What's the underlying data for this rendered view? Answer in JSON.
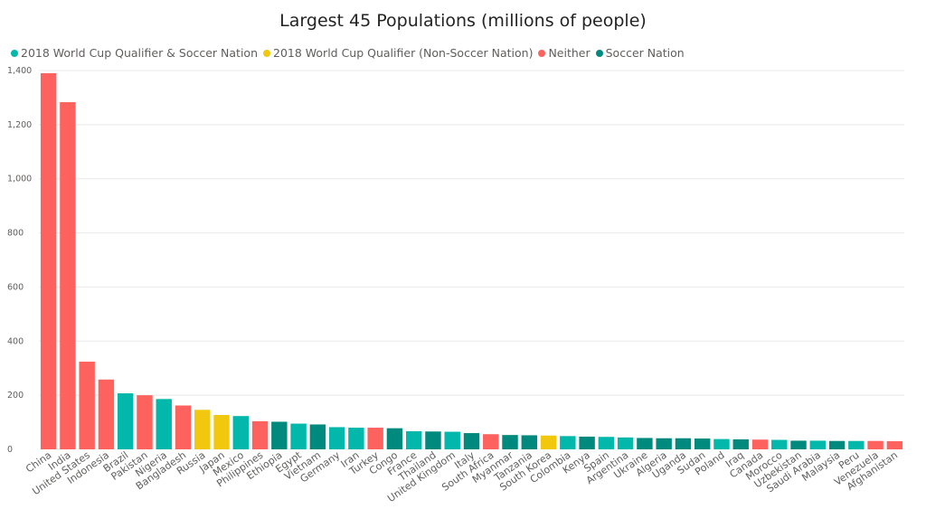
{
  "chart_data": {
    "type": "bar",
    "title": "Largest 45 Populations (millions of people)",
    "xlabel": "",
    "ylabel": "",
    "ylim": [
      0,
      1400
    ],
    "yticks": [
      0,
      200,
      400,
      600,
      800,
      1000,
      1200,
      1400
    ],
    "ytick_labels": [
      "0",
      "200",
      "400",
      "600",
      "800",
      "1,000",
      "1,200",
      "1,400"
    ],
    "grid": true,
    "legend_position": "top-left",
    "legend": [
      {
        "label": "2018 World Cup Qualifier & Soccer Nation",
        "color": "#01b8aa"
      },
      {
        "label": "2018 World Cup Qualifier (Non-Soccer Nation)",
        "color": "#f2c80f"
      },
      {
        "label": "Neither",
        "color": "#fd625e"
      },
      {
        "label": "Soccer Nation",
        "color": "#008a7e"
      }
    ],
    "bars": [
      {
        "category": "China",
        "value": 1390,
        "group": "Neither"
      },
      {
        "category": "India",
        "value": 1283,
        "group": "Neither"
      },
      {
        "category": "United States",
        "value": 324,
        "group": "Neither"
      },
      {
        "category": "Indonesia",
        "value": 258,
        "group": "Neither"
      },
      {
        "category": "Brazil",
        "value": 207,
        "group": "2018 World Cup Qualifier & Soccer Nation"
      },
      {
        "category": "Pakistan",
        "value": 200,
        "group": "Neither"
      },
      {
        "category": "Nigeria",
        "value": 186,
        "group": "2018 World Cup Qualifier & Soccer Nation"
      },
      {
        "category": "Bangladesh",
        "value": 162,
        "group": "Neither"
      },
      {
        "category": "Russia",
        "value": 146,
        "group": "2018 World Cup Qualifier (Non-Soccer Nation)"
      },
      {
        "category": "Japan",
        "value": 127,
        "group": "2018 World Cup Qualifier (Non-Soccer Nation)"
      },
      {
        "category": "Mexico",
        "value": 123,
        "group": "2018 World Cup Qualifier & Soccer Nation"
      },
      {
        "category": "Philippines",
        "value": 104,
        "group": "Neither"
      },
      {
        "category": "Ethiopia",
        "value": 102,
        "group": "Soccer Nation"
      },
      {
        "category": "Egypt",
        "value": 95,
        "group": "2018 World Cup Qualifier & Soccer Nation"
      },
      {
        "category": "Vietnam",
        "value": 92,
        "group": "Soccer Nation"
      },
      {
        "category": "Germany",
        "value": 82,
        "group": "2018 World Cup Qualifier & Soccer Nation"
      },
      {
        "category": "Iran",
        "value": 80,
        "group": "2018 World Cup Qualifier & Soccer Nation"
      },
      {
        "category": "Turkey",
        "value": 80,
        "group": "Neither"
      },
      {
        "category": "Congo",
        "value": 78,
        "group": "Soccer Nation"
      },
      {
        "category": "France",
        "value": 67,
        "group": "2018 World Cup Qualifier & Soccer Nation"
      },
      {
        "category": "Thailand",
        "value": 66,
        "group": "Soccer Nation"
      },
      {
        "category": "United Kingdom",
        "value": 65,
        "group": "2018 World Cup Qualifier & Soccer Nation"
      },
      {
        "category": "Italy",
        "value": 60,
        "group": "Soccer Nation"
      },
      {
        "category": "South Africa",
        "value": 56,
        "group": "Neither"
      },
      {
        "category": "Myanmar",
        "value": 53,
        "group": "Soccer Nation"
      },
      {
        "category": "Tanzania",
        "value": 52,
        "group": "Soccer Nation"
      },
      {
        "category": "South Korea",
        "value": 51,
        "group": "2018 World Cup Qualifier (Non-Soccer Nation)"
      },
      {
        "category": "Colombia",
        "value": 49,
        "group": "2018 World Cup Qualifier & Soccer Nation"
      },
      {
        "category": "Kenya",
        "value": 47,
        "group": "Soccer Nation"
      },
      {
        "category": "Spain",
        "value": 46,
        "group": "2018 World Cup Qualifier & Soccer Nation"
      },
      {
        "category": "Argentina",
        "value": 44,
        "group": "2018 World Cup Qualifier & Soccer Nation"
      },
      {
        "category": "Ukraine",
        "value": 42,
        "group": "Soccer Nation"
      },
      {
        "category": "Algeria",
        "value": 41,
        "group": "Soccer Nation"
      },
      {
        "category": "Uganda",
        "value": 41,
        "group": "Soccer Nation"
      },
      {
        "category": "Sudan",
        "value": 40,
        "group": "Soccer Nation"
      },
      {
        "category": "Poland",
        "value": 38,
        "group": "2018 World Cup Qualifier & Soccer Nation"
      },
      {
        "category": "Iraq",
        "value": 37,
        "group": "Soccer Nation"
      },
      {
        "category": "Canada",
        "value": 36,
        "group": "Neither"
      },
      {
        "category": "Morocco",
        "value": 35,
        "group": "2018 World Cup Qualifier & Soccer Nation"
      },
      {
        "category": "Uzbekistan",
        "value": 32,
        "group": "Soccer Nation"
      },
      {
        "category": "Saudi Arabia",
        "value": 32,
        "group": "2018 World Cup Qualifier & Soccer Nation"
      },
      {
        "category": "Malaysia",
        "value": 31,
        "group": "Soccer Nation"
      },
      {
        "category": "Peru",
        "value": 31,
        "group": "2018 World Cup Qualifier & Soccer Nation"
      },
      {
        "category": "Venezuela",
        "value": 31,
        "group": "Neither"
      },
      {
        "category": "Afghanistan",
        "value": 30,
        "group": "Neither"
      }
    ]
  }
}
